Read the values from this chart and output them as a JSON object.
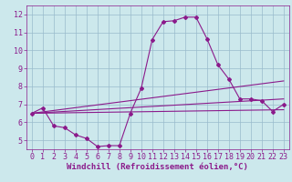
{
  "x_ticks": [
    0,
    1,
    2,
    3,
    4,
    5,
    6,
    7,
    8,
    9,
    10,
    11,
    12,
    13,
    14,
    15,
    16,
    17,
    18,
    19,
    20,
    21,
    22,
    23
  ],
  "line1_x": [
    0,
    1,
    2,
    3,
    4,
    5,
    6,
    7,
    8,
    9,
    10,
    11,
    12,
    13,
    14,
    15,
    16,
    17,
    18,
    19,
    20,
    21,
    22,
    23
  ],
  "line1_y": [
    6.5,
    6.8,
    5.8,
    5.7,
    5.3,
    5.1,
    4.65,
    4.7,
    4.7,
    6.5,
    7.9,
    10.6,
    11.6,
    11.65,
    11.85,
    11.85,
    10.65,
    9.2,
    8.4,
    7.3,
    7.3,
    7.2,
    6.6,
    7.0
  ],
  "line2_x": [
    0,
    23
  ],
  "line2_y": [
    6.5,
    8.3
  ],
  "line3_x": [
    0,
    23
  ],
  "line3_y": [
    6.5,
    7.3
  ],
  "line4_x": [
    0,
    23
  ],
  "line4_y": [
    6.5,
    6.7
  ],
  "line_color": "#8b1a8b",
  "bg_color": "#cce8ec",
  "grid_color": "#99bbcc",
  "xlabel": "Windchill (Refroidissement éolien,°C)",
  "ylim": [
    4.5,
    12.5
  ],
  "xlim": [
    -0.5,
    23.5
  ],
  "yticks": [
    5,
    6,
    7,
    8,
    9,
    10,
    11,
    12
  ],
  "marker": "D",
  "markersize": 2.0,
  "linewidth": 0.8,
  "xlabel_fontsize": 6.5,
  "tick_fontsize": 6.0
}
